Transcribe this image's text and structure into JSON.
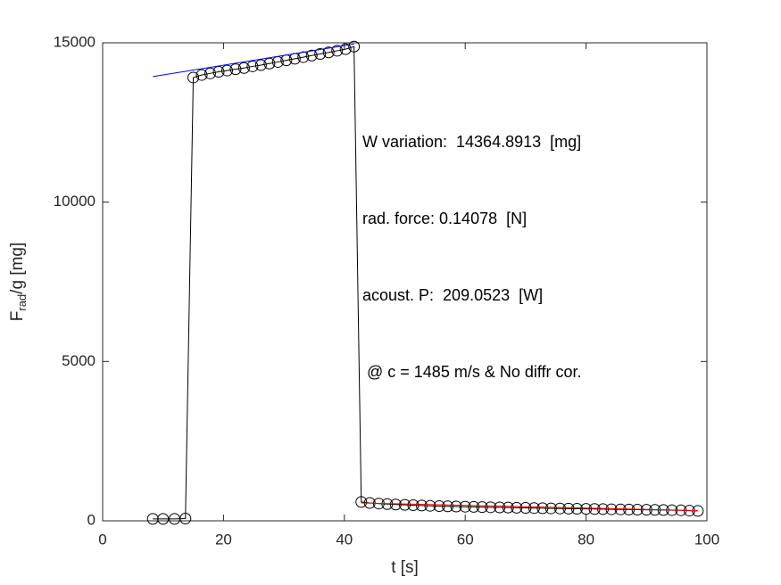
{
  "chart_data": {
    "type": "line",
    "xlabel": "t  [s]",
    "ylabel_parts": [
      "F",
      "rad",
      "/g  [mg]"
    ],
    "xlim": [
      0,
      100
    ],
    "xticks": [
      0,
      20,
      40,
      60,
      80,
      100
    ],
    "ylim": [
      0,
      15000
    ],
    "yticks": [
      0,
      5000,
      10000,
      15000
    ],
    "annotations": [
      "W variation:  14364.8913  [mg]",
      "rad. force: 0.14078  [N]",
      "acoust. P:  209.0523  [W]",
      " @ c = 1485 m/s & No diffr cor."
    ],
    "series": [
      {
        "color": "#000000",
        "marker": "circle",
        "x": [
          8.3,
          10.0,
          11.9,
          13.7,
          15.0,
          16.4,
          17.8,
          19.2,
          20.6,
          22.0,
          23.4,
          24.8,
          26.2,
          27.6,
          29.0,
          30.4,
          31.8,
          33.2,
          34.6,
          36.0,
          37.4,
          38.8,
          40.2,
          41.6,
          42.8,
          44.2,
          45.7,
          47.1,
          48.5,
          50.0,
          51.4,
          52.8,
          54.2,
          55.7,
          57.1,
          58.5,
          60.0,
          61.4,
          62.8,
          64.2,
          65.7,
          67.1,
          68.5,
          70.0,
          71.4,
          72.8,
          74.2,
          75.7,
          77.1,
          78.5,
          80.0,
          81.4,
          82.8,
          84.2,
          85.7,
          87.1,
          88.5,
          90.0,
          91.4,
          92.8,
          94.2,
          95.7,
          97.1,
          98.5
        ],
        "values": [
          60,
          60,
          60,
          70,
          13910,
          13990,
          14040,
          14090,
          14130,
          14170,
          14210,
          14260,
          14300,
          14350,
          14400,
          14450,
          14500,
          14550,
          14600,
          14650,
          14700,
          14750,
          14800,
          14880,
          590,
          560,
          540,
          525,
          510,
          500,
          490,
          480,
          470,
          462,
          455,
          448,
          442,
          436,
          430,
          425,
          420,
          415,
          410,
          405,
          400,
          395,
          390,
          386,
          382,
          378,
          374,
          370,
          366,
          362,
          358,
          354,
          350,
          346,
          342,
          338,
          334,
          330,
          320,
          310
        ]
      },
      {
        "color": "#0000ff",
        "marker": "none",
        "x": [
          8.3,
          41.6
        ],
        "values": [
          13940,
          14960
        ]
      },
      {
        "color": "#ff0000",
        "marker": "none",
        "x": [
          42.8,
          98.5
        ],
        "values": [
          560,
          320
        ]
      }
    ]
  }
}
